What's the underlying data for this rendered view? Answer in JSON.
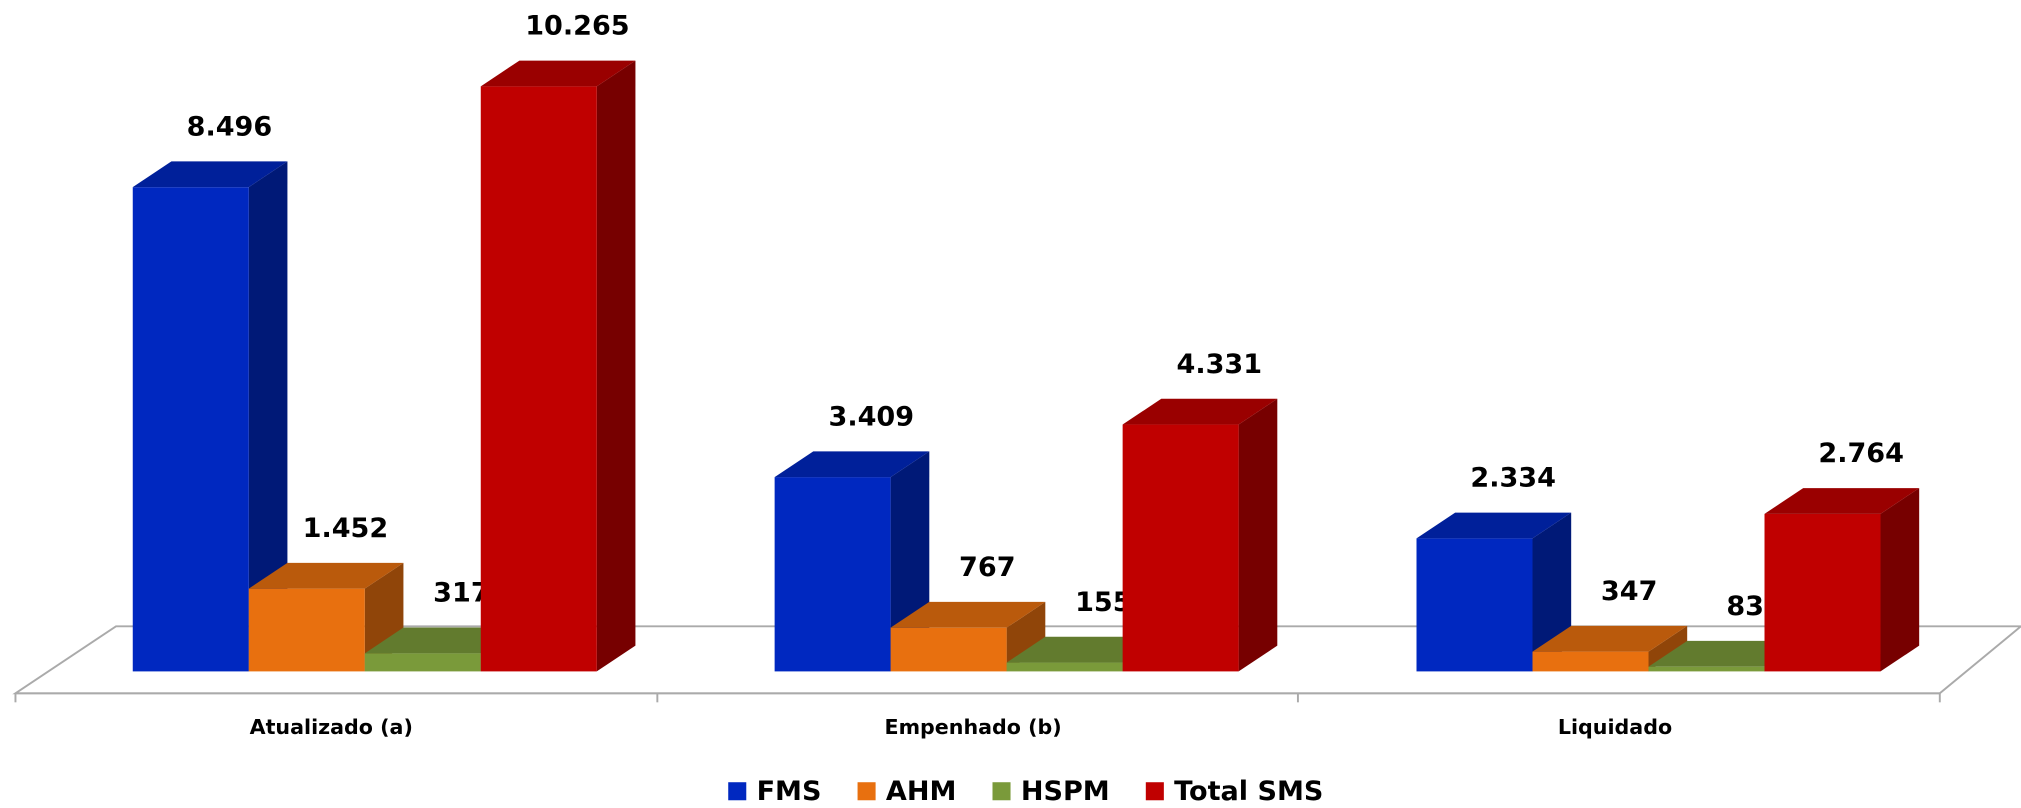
{
  "chart_data": {
    "type": "bar3d",
    "categories": [
      "Atualizado (a)",
      "Empenhado (b)",
      "Liquidado"
    ],
    "series": [
      {
        "name": "FMS",
        "color": "#0028c0",
        "values": [
          8496,
          3409,
          2334
        ],
        "value_labels": [
          "8.496",
          "3.409",
          "2.334"
        ]
      },
      {
        "name": "AHM",
        "color": "#e8700f",
        "values": [
          1452,
          767,
          347
        ],
        "value_labels": [
          "1.452",
          "767",
          "347"
        ]
      },
      {
        "name": "HSPM",
        "color": "#7a9a3a",
        "values": [
          317,
          155,
          83
        ],
        "value_labels": [
          "317",
          "155",
          "83"
        ]
      },
      {
        "name": "Total SMS",
        "color": "#c00000",
        "values": [
          10265,
          4331,
          2764
        ],
        "value_labels": [
          "10.265",
          "4.331",
          "2.764"
        ]
      }
    ],
    "legend": "bottom"
  }
}
